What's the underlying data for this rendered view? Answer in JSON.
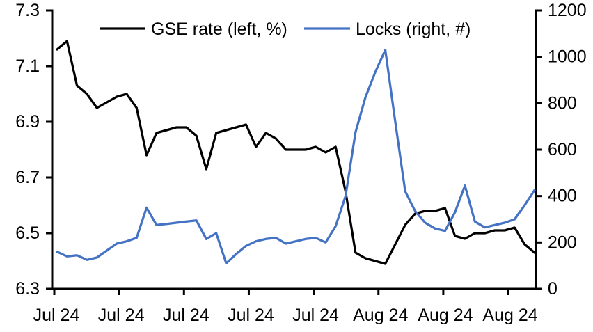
{
  "chart_data": {
    "type": "line",
    "title": "",
    "legend_position": "top-inside",
    "grid": false,
    "x_axis": {
      "tick_labels": [
        "Jul 24",
        "Jul 24",
        "Jul 24",
        "Jul 24",
        "Jul 24",
        "Aug 24",
        "Aug 24",
        "Aug 24"
      ]
    },
    "left_axis": {
      "range": [
        6.3,
        7.3
      ],
      "tick_labels": [
        "7.3",
        "7.1",
        "6.9",
        "6.7",
        "6.5",
        "6.3"
      ]
    },
    "right_axis": {
      "range": [
        0,
        1200
      ],
      "tick_labels": [
        "1200",
        "1000",
        "800",
        "600",
        "400",
        "200",
        "0"
      ]
    },
    "axis_color": "#000000",
    "series": [
      {
        "name": "GSE rate (left, %)",
        "axis": "left",
        "color": "#000000",
        "values": [
          7.16,
          7.19,
          7.03,
          7.0,
          6.95,
          6.97,
          6.99,
          7.0,
          6.95,
          6.78,
          6.86,
          6.87,
          6.88,
          6.88,
          6.85,
          6.73,
          6.86,
          6.87,
          6.88,
          6.89,
          6.81,
          6.86,
          6.84,
          6.8,
          6.8,
          6.8,
          6.81,
          6.79,
          6.81,
          6.65,
          6.43,
          6.41,
          6.4,
          6.39,
          6.46,
          6.53,
          6.57,
          6.58,
          6.58,
          6.59,
          6.49,
          6.48,
          6.5,
          6.5,
          6.51,
          6.51,
          6.52,
          6.46,
          6.43
        ]
      },
      {
        "name": "Locks (right, #)",
        "axis": "right",
        "color": "#4472C4",
        "values": [
          160,
          140,
          145,
          125,
          135,
          165,
          195,
          205,
          220,
          350,
          275,
          280,
          285,
          290,
          295,
          215,
          240,
          110,
          150,
          185,
          205,
          215,
          220,
          195,
          205,
          215,
          220,
          200,
          270,
          400,
          675,
          825,
          935,
          1030,
          720,
          420,
          335,
          285,
          260,
          250,
          330,
          445,
          290,
          265,
          275,
          285,
          300,
          360,
          425
        ]
      }
    ]
  }
}
